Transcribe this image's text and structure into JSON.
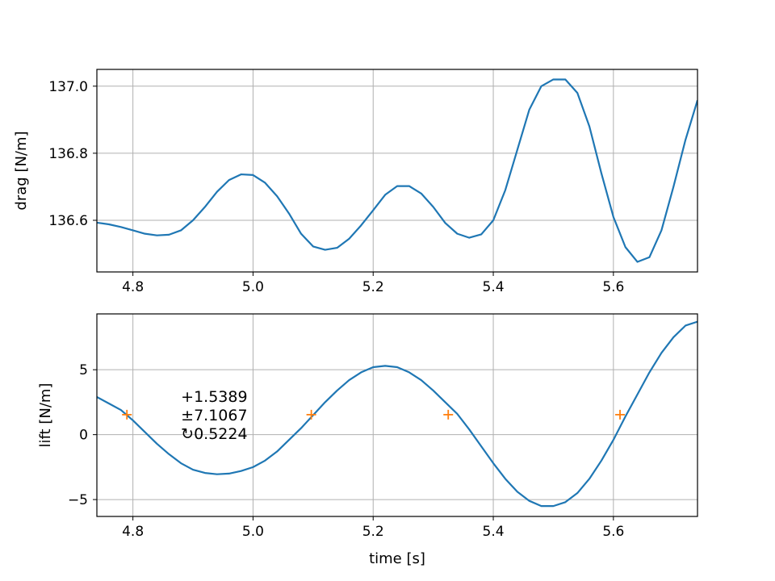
{
  "chart_data": [
    {
      "type": "line",
      "ylabel": "drag [N/m]",
      "xlabel": "",
      "xlim": [
        4.74,
        5.74
      ],
      "ylim": [
        136.446,
        137.05
      ],
      "xticks": [
        4.8,
        5.0,
        5.2,
        5.4,
        5.6
      ],
      "xtick_labels": [
        "4.8",
        "5.0",
        "5.2",
        "5.4",
        "5.6"
      ],
      "yticks": [
        136.6,
        136.8,
        137.0
      ],
      "ytick_labels": [
        "136.6",
        "136.8",
        "137.0"
      ],
      "grid": true,
      "color": "#1f77b4",
      "series": [
        {
          "x": [
            4.74,
            4.76,
            4.78,
            4.8,
            4.82,
            4.84,
            4.86,
            4.88,
            4.9,
            4.92,
            4.94,
            4.96,
            4.98,
            5.0,
            5.02,
            5.04,
            5.06,
            5.08,
            5.1,
            5.12,
            5.14,
            5.16,
            5.18,
            5.2,
            5.22,
            5.24,
            5.26,
            5.28,
            5.3,
            5.32,
            5.34,
            5.36,
            5.38,
            5.4,
            5.42,
            5.44,
            5.46,
            5.48,
            5.5,
            5.52,
            5.54,
            5.56,
            5.58,
            5.6,
            5.62,
            5.64,
            5.66,
            5.68,
            5.7,
            5.72,
            5.74
          ],
          "y": [
            136.593,
            136.588,
            136.58,
            136.57,
            136.56,
            136.555,
            136.557,
            136.57,
            136.6,
            136.64,
            136.685,
            136.72,
            136.737,
            136.735,
            136.712,
            136.672,
            136.62,
            136.56,
            136.522,
            136.512,
            136.518,
            136.545,
            136.585,
            136.63,
            136.676,
            136.702,
            136.702,
            136.68,
            136.64,
            136.592,
            136.56,
            136.548,
            136.558,
            136.6,
            136.69,
            136.81,
            136.93,
            137.0,
            137.02,
            137.02,
            136.98,
            136.88,
            136.74,
            136.61,
            136.52,
            136.476,
            136.49,
            136.57,
            136.7,
            136.84,
            136.958
          ]
        }
      ]
    },
    {
      "type": "line",
      "ylabel": "lift [N/m]",
      "xlabel": "time [s]",
      "xlim": [
        4.74,
        5.74
      ],
      "ylim": [
        -6.3,
        9.3
      ],
      "xticks": [
        4.8,
        5.0,
        5.2,
        5.4,
        5.6
      ],
      "xtick_labels": [
        "4.8",
        "5.0",
        "5.2",
        "5.4",
        "5.6"
      ],
      "yticks": [
        -5,
        0,
        5
      ],
      "ytick_labels": [
        "−5",
        "0",
        "5"
      ],
      "grid": true,
      "color": "#1f77b4",
      "series": [
        {
          "x": [
            4.74,
            4.76,
            4.78,
            4.8,
            4.82,
            4.84,
            4.86,
            4.88,
            4.9,
            4.92,
            4.94,
            4.96,
            4.98,
            5.0,
            5.02,
            5.04,
            5.06,
            5.08,
            5.1,
            5.12,
            5.14,
            5.16,
            5.18,
            5.2,
            5.22,
            5.24,
            5.26,
            5.28,
            5.3,
            5.32,
            5.34,
            5.36,
            5.38,
            5.4,
            5.42,
            5.44,
            5.46,
            5.48,
            5.5,
            5.52,
            5.54,
            5.56,
            5.58,
            5.6,
            5.62,
            5.64,
            5.66,
            5.68,
            5.7,
            5.72,
            5.74
          ],
          "y": [
            2.9,
            2.4,
            1.9,
            1.1,
            0.2,
            -0.7,
            -1.5,
            -2.2,
            -2.7,
            -2.95,
            -3.05,
            -3.0,
            -2.8,
            -2.5,
            -2.0,
            -1.3,
            -0.4,
            0.5,
            1.5,
            2.5,
            3.4,
            4.2,
            4.8,
            5.2,
            5.3,
            5.2,
            4.8,
            4.2,
            3.4,
            2.5,
            1.6,
            0.4,
            -0.9,
            -2.2,
            -3.4,
            -4.4,
            -5.1,
            -5.5,
            -5.5,
            -5.2,
            -4.5,
            -3.4,
            -2.0,
            -0.4,
            1.4,
            3.1,
            4.8,
            6.3,
            7.5,
            8.4,
            8.7
          ]
        }
      ],
      "markers": {
        "symbol": "+",
        "color": "#ff7f0e",
        "points": [
          {
            "x": 4.79,
            "y": 1.5389
          },
          {
            "x": 5.097,
            "y": 1.5389
          },
          {
            "x": 5.325,
            "y": 1.5389
          },
          {
            "x": 5.611,
            "y": 1.5389
          }
        ]
      },
      "annotation": {
        "x": 4.88,
        "lines": [
          "+1.5389",
          "±7.1067",
          "↻0.5224"
        ]
      }
    }
  ]
}
